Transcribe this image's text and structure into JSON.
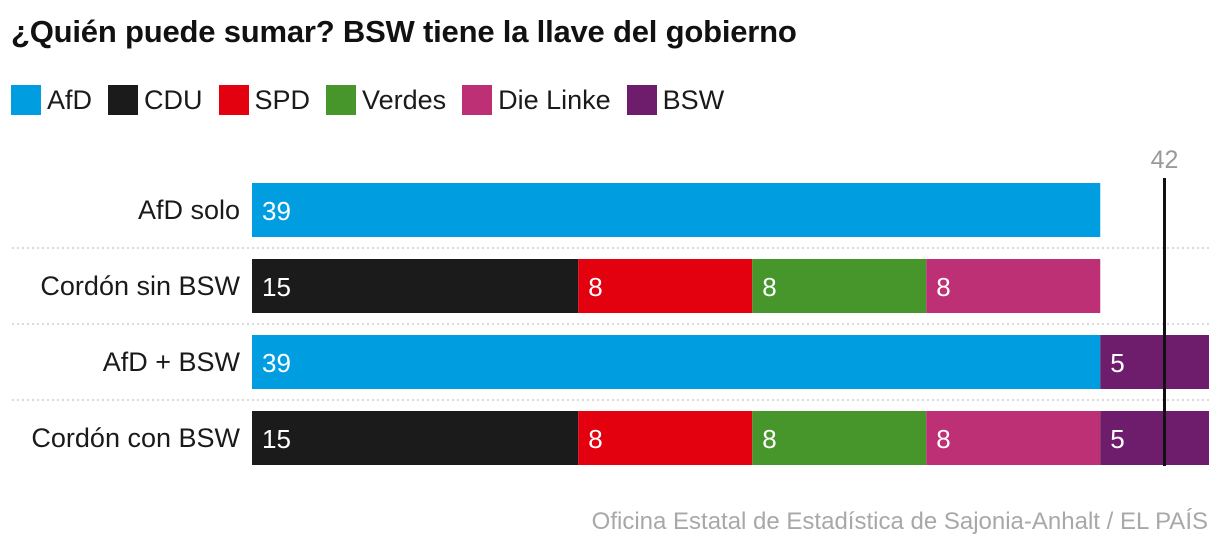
{
  "title": "¿Quién puede sumar? BSW tiene la llave del gobierno",
  "source": "Oficina Estatal de Estadística de Sajonia-Anhalt / EL PAÍS",
  "colors": {
    "AfD": "#009ee0",
    "CDU": "#1b1b1b",
    "SPD": "#e3000f",
    "Verdes": "#46962b",
    "Die Linke": "#be3075",
    "BSW": "#6e1d6c"
  },
  "legend": [
    "AfD",
    "CDU",
    "SPD",
    "Verdes",
    "Die Linke",
    "BSW"
  ],
  "chart_data": {
    "type": "bar",
    "orientation": "horizontal",
    "stacked": true,
    "categories": [
      "AfD solo",
      "Cordón sin BSW",
      "AfD + BSW",
      "Cordón con BSW"
    ],
    "series": [
      {
        "name": "AfD",
        "values": [
          39,
          0,
          39,
          0
        ]
      },
      {
        "name": "CDU",
        "values": [
          0,
          15,
          0,
          15
        ]
      },
      {
        "name": "SPD",
        "values": [
          0,
          8,
          0,
          8
        ]
      },
      {
        "name": "Verdes",
        "values": [
          0,
          8,
          0,
          8
        ]
      },
      {
        "name": "Die Linke",
        "values": [
          0,
          8,
          0,
          8
        ]
      },
      {
        "name": "BSW",
        "values": [
          0,
          0,
          5,
          5
        ]
      }
    ],
    "majority_line": {
      "value": 42,
      "label": "42"
    },
    "xlim": [
      0,
      44
    ]
  }
}
